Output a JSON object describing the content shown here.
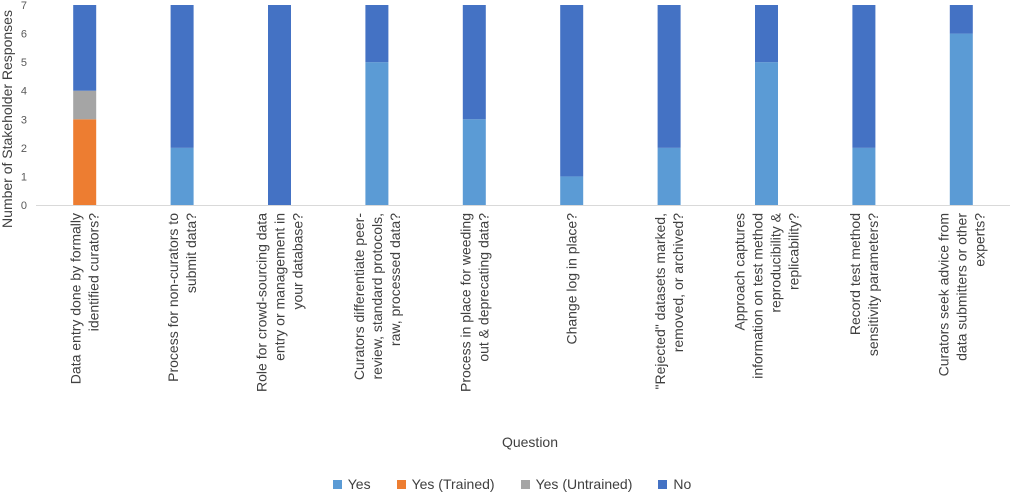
{
  "chart_data": {
    "type": "bar",
    "stacked": true,
    "title": "",
    "xlabel": "Question",
    "ylabel": "Number of Stakeholder Responses",
    "ylim": [
      0,
      7
    ],
    "yticks": [
      0,
      1,
      2,
      3,
      4,
      5,
      6,
      7
    ],
    "grid": false,
    "legend_position": "bottom",
    "categories": [
      [
        "Data entry done by formally",
        "identified curators?"
      ],
      [
        "Process for non-curators to",
        "submit data?"
      ],
      [
        "Role for crowd-sourcing data",
        "entry or management in",
        "your database?"
      ],
      [
        "Curators differentiate peer-",
        "review, standard protocols,",
        "raw, processed data?"
      ],
      [
        "Process in place for weeding",
        "out & deprecating data?"
      ],
      [
        "Change log in place?"
      ],
      [
        "\"Rejected\" datasets marked,",
        "removed, or archived?"
      ],
      [
        "Approach captures",
        "information on test method",
        "reproducibility &",
        "replicability?"
      ],
      [
        "Record test method",
        "sensitivity parameters?"
      ],
      [
        "Curators seek advice from",
        "data submitters or other",
        "experts?"
      ]
    ],
    "series": [
      {
        "name": "Yes",
        "color": "#5B9BD5",
        "values": [
          0,
          2,
          0,
          5,
          3,
          1,
          2,
          5,
          2,
          6
        ]
      },
      {
        "name": "Yes (Trained)",
        "color": "#ED7D31",
        "values": [
          3,
          0,
          0,
          0,
          0,
          0,
          0,
          0,
          0,
          0
        ]
      },
      {
        "name": "Yes (Untrained)",
        "color": "#A5A5A5",
        "values": [
          1,
          0,
          0,
          0,
          0,
          0,
          0,
          0,
          0,
          0
        ]
      },
      {
        "name": "No",
        "color": "#4472C4",
        "values": [
          3,
          5,
          7,
          2,
          4,
          6,
          5,
          2,
          5,
          1
        ]
      }
    ],
    "stack_order": [
      "Yes (Trained)",
      "Yes (Untrained)",
      "Yes",
      "No"
    ]
  }
}
